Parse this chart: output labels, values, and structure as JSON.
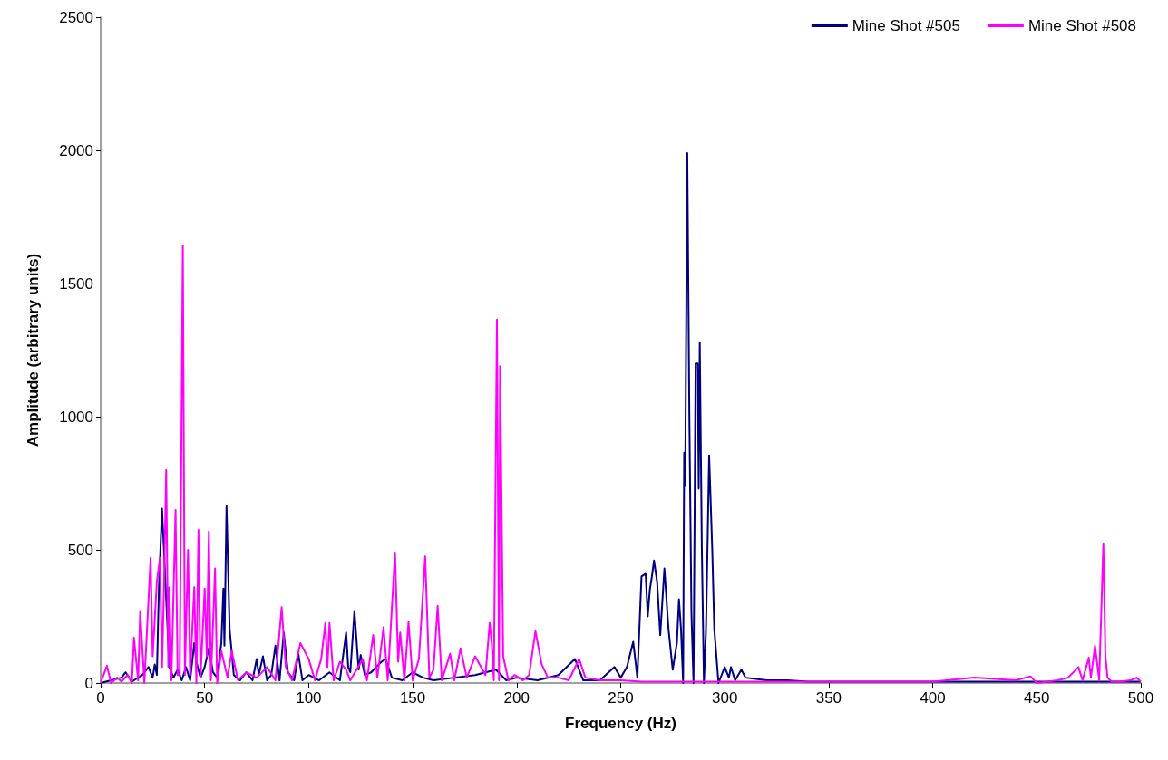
{
  "chart_data": {
    "type": "line",
    "xlabel": "Frequency (Hz)",
    "ylabel": "Amplitude (arbitrary units)",
    "xlim": [
      0,
      500
    ],
    "xticks": [
      0,
      50,
      100,
      150,
      200,
      250,
      300,
      350,
      400,
      450,
      500
    ],
    "ylim": [
      0,
      2500
    ],
    "yticks": [
      0,
      500,
      1000,
      1500,
      2000,
      2500
    ],
    "grid": false,
    "legend": "top right",
    "marker": "none",
    "line_style": "solid",
    "series": [
      {
        "name": "Mine Shot #505",
        "color": "#000080",
        "x": [
          0,
          5,
          10,
          12,
          15,
          20,
          23,
          25,
          26,
          27,
          28,
          29.5,
          31,
          33,
          35,
          37,
          39,
          41,
          43,
          45,
          46,
          48,
          50,
          52,
          54,
          56,
          58,
          59,
          59.5,
          60.5,
          62,
          64,
          67,
          70,
          73,
          75,
          76,
          78,
          80,
          82,
          84,
          86,
          88,
          90,
          93,
          95,
          97,
          100,
          105,
          110,
          115,
          118,
          119,
          120,
          122,
          124,
          125,
          127,
          130,
          135,
          137,
          140,
          145,
          150,
          155,
          160,
          170,
          180,
          190,
          195,
          200,
          210,
          220,
          228,
          232,
          240,
          247,
          250,
          253,
          256,
          258,
          260,
          262,
          263,
          264,
          265,
          266,
          267.5,
          269,
          271,
          273,
          275,
          277,
          278,
          279,
          280,
          280.5,
          281,
          282,
          283,
          284,
          285,
          286,
          287,
          287.5,
          288,
          289,
          290,
          291,
          292.5,
          294,
          295,
          297,
          300,
          302,
          303,
          305,
          308,
          310,
          315,
          320,
          330,
          340,
          360,
          400,
          450,
          500
        ],
        "values": [
          0,
          10,
          20,
          40,
          5,
          30,
          60,
          20,
          70,
          30,
          360,
          655,
          400,
          60,
          20,
          50,
          10,
          60,
          10,
          150,
          80,
          20,
          60,
          130,
          40,
          20,
          150,
          355,
          140,
          665,
          200,
          30,
          10,
          40,
          10,
          90,
          30,
          100,
          10,
          30,
          140,
          10,
          190,
          40,
          10,
          110,
          10,
          30,
          10,
          40,
          10,
          190,
          60,
          40,
          270,
          50,
          105,
          30,
          40,
          80,
          90,
          20,
          10,
          40,
          20,
          10,
          20,
          30,
          50,
          10,
          20,
          10,
          30,
          90,
          10,
          10,
          60,
          20,
          60,
          155,
          20,
          400,
          410,
          250,
          350,
          400,
          460,
          380,
          180,
          430,
          200,
          50,
          150,
          315,
          200,
          0,
          865,
          740,
          1990,
          1000,
          260,
          0,
          1200,
          1200,
          730,
          1280,
          500,
          0,
          200,
          855,
          500,
          200,
          0,
          60,
          20,
          60,
          10,
          50,
          20,
          15,
          10,
          10,
          5,
          5,
          5,
          5,
          5
        ]
      },
      {
        "name": "Mine Shot #508",
        "color": "#ff00ff",
        "x": [
          0,
          3,
          5,
          8,
          10,
          13,
          15,
          16,
          18,
          19,
          21,
          24,
          25,
          27,
          28.5,
          29.5,
          30.5,
          31.5,
          32.5,
          33,
          34,
          36,
          37,
          38,
          39.5,
          40.5,
          41,
          42,
          43,
          45,
          46,
          47,
          48,
          50,
          51,
          52,
          53,
          55,
          56,
          58,
          61,
          63,
          66,
          70,
          75,
          80,
          84,
          87,
          89,
          92,
          96,
          100,
          103,
          106,
          108,
          109,
          110,
          112,
          115,
          118,
          120,
          126,
          128,
          131,
          133,
          136,
          138,
          141.5,
          143,
          144,
          146,
          148,
          150,
          153,
          156,
          158,
          160,
          162,
          164,
          168,
          170,
          173,
          176,
          180,
          185,
          187,
          188,
          189,
          190.5,
          191.5,
          192,
          193.5,
          196,
          199,
          203,
          206,
          209,
          212,
          215,
          220,
          225,
          230,
          233,
          240,
          250,
          260,
          280,
          300,
          350,
          400,
          420,
          440,
          447,
          450,
          460,
          465,
          470,
          472,
          475,
          476,
          478,
          480,
          482,
          483,
          484,
          486,
          490,
          495,
          498,
          500
        ],
        "values": [
          0,
          65,
          0,
          20,
          5,
          30,
          0,
          170,
          10,
          270,
          0,
          470,
          100,
          380,
          470,
          60,
          380,
          800,
          60,
          360,
          10,
          650,
          30,
          30,
          1640,
          30,
          200,
          500,
          30,
          360,
          0,
          575,
          20,
          355,
          100,
          570,
          10,
          430,
          0,
          120,
          20,
          120,
          10,
          40,
          20,
          60,
          10,
          285,
          60,
          10,
          150,
          90,
          10,
          90,
          225,
          60,
          225,
          10,
          80,
          50,
          10,
          90,
          10,
          180,
          20,
          210,
          10,
          490,
          80,
          190,
          10,
          230,
          10,
          90,
          475,
          20,
          50,
          290,
          10,
          110,
          10,
          130,
          20,
          100,
          30,
          225,
          150,
          10,
          1365,
          10,
          1190,
          100,
          10,
          30,
          10,
          30,
          195,
          70,
          20,
          20,
          10,
          90,
          20,
          10,
          10,
          5,
          5,
          5,
          5,
          5,
          20,
          10,
          25,
          0,
          10,
          20,
          60,
          10,
          95,
          20,
          140,
          10,
          525,
          100,
          20,
          5,
          5,
          10,
          20,
          5
        ]
      }
    ]
  }
}
